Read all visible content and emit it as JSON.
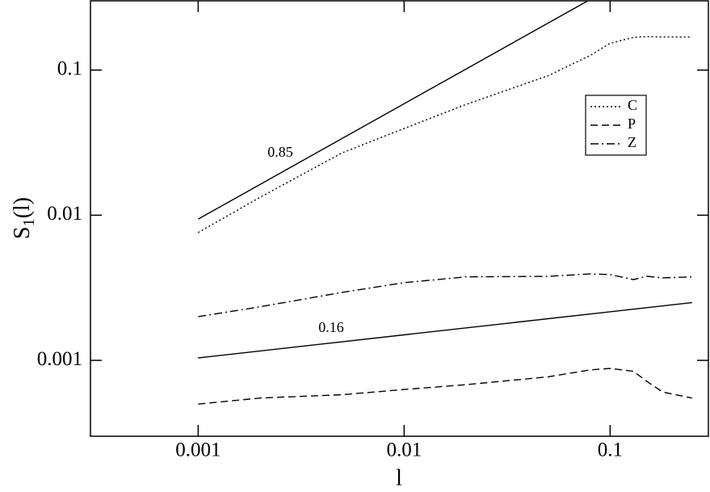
{
  "chart_data": {
    "type": "line",
    "xlabel": "l",
    "ylabel": {
      "main": "S",
      "subscript": "1",
      "rest": "(l)"
    },
    "xscale": "log",
    "yscale": "log",
    "xlim": [
      0.0003,
      0.3
    ],
    "ylim": [
      0.0003,
      0.3
    ],
    "xticks": [
      0.001,
      0.01,
      0.1
    ],
    "yticks": [
      0.001,
      0.01,
      0.1
    ],
    "legend": "upper right",
    "x": [
      0.001,
      0.002,
      0.005,
      0.01,
      0.02,
      0.05,
      0.08,
      0.1,
      0.13,
      0.15,
      0.18,
      0.25
    ],
    "series": [
      {
        "name": "C",
        "color": "#000000",
        "style": "dotted",
        "values": [
          0.0076,
          0.0133,
          0.0269,
          0.0396,
          0.058,
          0.0914,
          0.126,
          0.153,
          0.168,
          0.17,
          0.169,
          0.169
        ]
      },
      {
        "name": "P",
        "color": "#000000",
        "style": "dashed",
        "values": [
          0.0005,
          0.00055,
          0.00058,
          0.00063,
          0.00068,
          0.00077,
          0.00086,
          0.00088,
          0.00084,
          0.00072,
          0.000605,
          0.00055
        ]
      },
      {
        "name": "Z",
        "color": "#000000",
        "style": "dashdot",
        "values": [
          0.002,
          0.00234,
          0.00294,
          0.00343,
          0.00376,
          0.00379,
          0.00394,
          0.0039,
          0.0036,
          0.0038,
          0.0037,
          0.00376
        ]
      }
    ],
    "fits": [
      {
        "label": "0.85",
        "color": "#000000",
        "x": [
          0.001,
          0.078
        ],
        "values": [
          0.0094,
          0.3
        ]
      },
      {
        "label": "0.16",
        "color": "#000000",
        "x": [
          0.001,
          0.25
        ],
        "values": [
          0.00104,
          0.0025
        ]
      }
    ]
  }
}
